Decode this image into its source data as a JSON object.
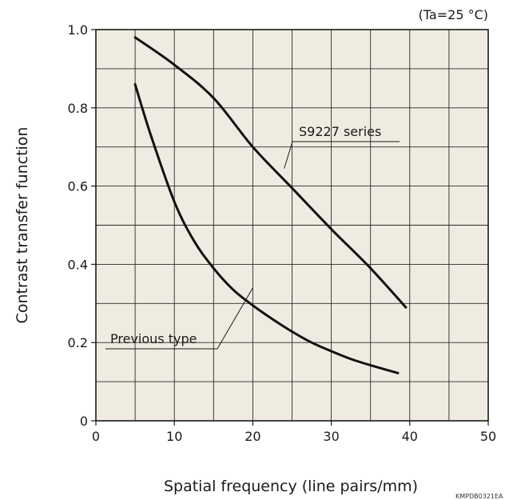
{
  "chart_data": {
    "type": "line",
    "condition_label": "(Ta=25 °C)",
    "xlabel": "Spatial frequency (line pairs/mm)",
    "ylabel": "Contrast transfer function",
    "xlim": [
      0,
      50
    ],
    "ylim": [
      0,
      1.0
    ],
    "x_ticks": [
      0,
      10,
      20,
      30,
      40,
      50
    ],
    "y_ticks": [
      0,
      0.2,
      0.4,
      0.6,
      0.8,
      1.0
    ],
    "x_tick_labels": [
      "0",
      "10",
      "20",
      "30",
      "40",
      "50"
    ],
    "y_tick_labels": [
      "0",
      "0.2",
      "0.4",
      "0.6",
      "0.8",
      "1.0"
    ],
    "grid": true,
    "plot_background": "#f0ebe0",
    "series": [
      {
        "name": "S9227 series",
        "points": [
          [
            5,
            0.98
          ],
          [
            10,
            0.91
          ],
          [
            15,
            0.825
          ],
          [
            20,
            0.7
          ],
          [
            25,
            0.595
          ],
          [
            30,
            0.49
          ],
          [
            35,
            0.39
          ],
          [
            39.5,
            0.29
          ]
        ]
      },
      {
        "name": "Previous type",
        "points": [
          [
            5,
            0.86
          ],
          [
            7,
            0.73
          ],
          [
            10,
            0.56
          ],
          [
            12.5,
            0.46
          ],
          [
            15,
            0.39
          ],
          [
            17.5,
            0.335
          ],
          [
            20,
            0.295
          ],
          [
            22.5,
            0.26
          ],
          [
            25,
            0.228
          ],
          [
            27.5,
            0.2
          ],
          [
            30,
            0.178
          ],
          [
            32.5,
            0.158
          ],
          [
            35,
            0.142
          ],
          [
            38.5,
            0.122
          ]
        ]
      }
    ],
    "annotations": [
      {
        "text": "S9227 series",
        "series_index": 0,
        "target": [
          24,
          0.645
        ]
      },
      {
        "text": "Previous type",
        "series_index": 1,
        "target": [
          20,
          0.34
        ]
      }
    ],
    "document_code": "KMPDB0321EA"
  }
}
